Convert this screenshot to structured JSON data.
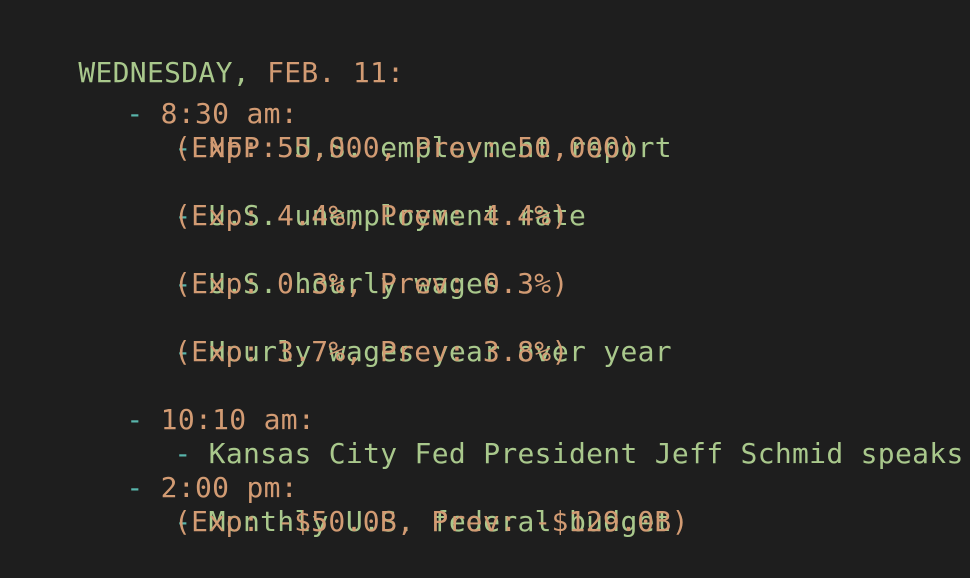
{
  "heading": {
    "day": "WEDNESDAY,",
    "date": "FEB. 11:"
  },
  "times": [
    {
      "bullet": "-",
      "time": "8:30 am:",
      "events": [
        {
          "bullet": "-",
          "prefix": "NFP:",
          "title": "U.S. employment report",
          "detail": "(Exp: 55,000, Prev: 50,000)"
        },
        {
          "bullet": "-",
          "title": "U.S. unemployment rate",
          "detail": "(Exp: 4.4%, Prev: 4.4%)"
        },
        {
          "bullet": "-",
          "title": "U.S. hourly wages",
          "detail": "(Exp: 0.3%, Prev: 0.3%)"
        },
        {
          "bullet": "-",
          "title": "Hourly wages year over year",
          "detail": "(Exp: 3.7%, Prev: 3.8%)"
        }
      ]
    },
    {
      "bullet": "-",
      "time": "10:10 am:",
      "events": [
        {
          "bullet": "-",
          "title": "Kansas City Fed President Jeff Schmid speaks"
        }
      ]
    },
    {
      "bullet": "-",
      "time": "2:00 pm:",
      "events": [
        {
          "bullet": "-",
          "title": "Monthly U.S. federal budget",
          "detail": "(Exp: -$50.0B, Prev: -$129.0B)"
        }
      ]
    }
  ],
  "colors": {
    "background": "#1e1e1e",
    "text_green": "#a9c88c",
    "text_orange": "#d29b73",
    "bullet_teal": "#58b5ab"
  }
}
